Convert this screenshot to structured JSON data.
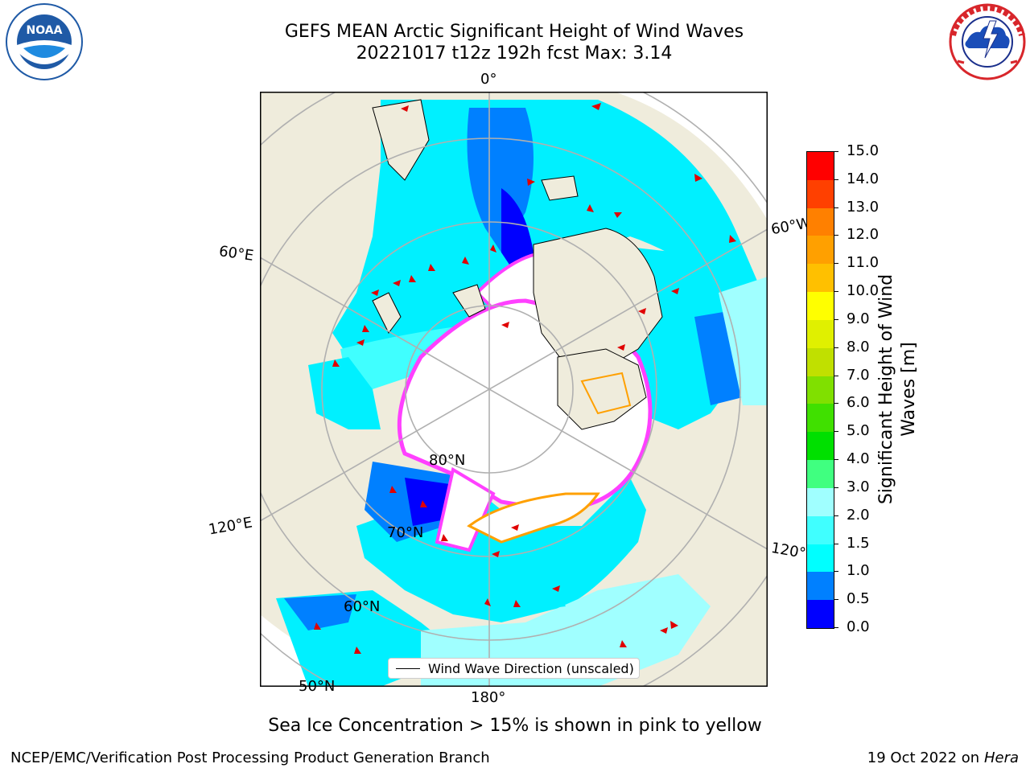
{
  "title": {
    "line1": "GEFS MEAN Arctic Significant Height of Wind Waves",
    "line2": "20221017 t12z 192h fcst   Max: 3.14"
  },
  "logos": {
    "left": {
      "name": "noaa",
      "center_text": "NOAA",
      "ring_text": "NATIONAL OCEANIC AND ATMOSPHERIC ADMINISTRATION",
      "ring_text_bottom": "U.S. DEPARTMENT OF COMMERCE",
      "color": "#1f5aa6"
    },
    "right": {
      "name": "national-weather-service",
      "ring_text": "NATIONAL WEATHER SERVICE",
      "color": "#d8262b"
    }
  },
  "map": {
    "projection": "north-polar-stereographic",
    "lon_labels": {
      "lon_0": "0°",
      "lon_180": "180°",
      "lon_60e": "60°E",
      "lon_120e": "120°E",
      "lon_60w": "60°W",
      "lon_120w": "120°W"
    },
    "lat_labels": {
      "lat_80": "80°N",
      "lat_70": "70°N",
      "lat_60": "60°N",
      "lat_50": "50°N"
    },
    "legend_label": "Wind Wave Direction (unscaled)",
    "ice_note": "Sea Ice Concentration > 15% is shown in pink to yellow",
    "colors": {
      "land": "#efecdc",
      "ice": "#ffffff",
      "ocean_light": "#00f0ff",
      "ocean_mid": "#0080ff",
      "ocean_dark": "#0000ff",
      "ice_edge": "#ff40ff",
      "arrow": "#e00000"
    }
  },
  "colorbar": {
    "label": "Significant Height of Wind Waves [m]",
    "label_line1": "Significant Height of Wind",
    "label_line2": "Waves [m]",
    "ticks": [
      "0.0",
      "0.5",
      "1.0",
      "1.5",
      "2.0",
      "3.0",
      "4.0",
      "5.0",
      "6.0",
      "7.0",
      "8.0",
      "9.0",
      "10.0",
      "11.0",
      "12.0",
      "13.0",
      "14.0",
      "15.0"
    ],
    "colors": [
      "#0000ff",
      "#0080ff",
      "#00ffff",
      "#40ffff",
      "#a0ffff",
      "#40ff80",
      "#00e000",
      "#40e000",
      "#80e000",
      "#c0e000",
      "#e0f000",
      "#ffff00",
      "#ffc000",
      "#ffa000",
      "#ff8000",
      "#ff4000",
      "#ff0000"
    ]
  },
  "footer": {
    "credit": "NCEP/EMC/Verification Post Processing Product Generation Branch",
    "date_prefix": "19 Oct 2022 on ",
    "machine": "Hera"
  }
}
